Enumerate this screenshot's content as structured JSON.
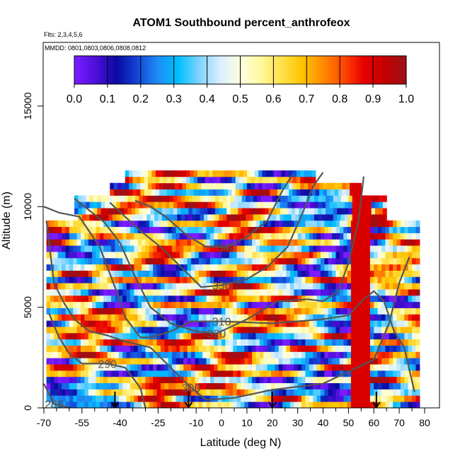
{
  "chart_data": {
    "type": "heatmap",
    "title": "ATOM1 Southbound percent_anthrofeox",
    "flts_label": "Flts: 2,3,4,5,6",
    "mmdd_label": "MMDD: 0801,0803,0806,0808,0812",
    "xlabel": "Latitude (deg N)",
    "ylabel": "Altitude (m)",
    "xlim": [
      -70,
      80
    ],
    "ylim": [
      0,
      17500
    ],
    "x_ticks": [
      -70,
      -55,
      -40,
      -25,
      -10,
      0,
      10,
      20,
      30,
      40,
      50,
      60,
      70,
      80
    ],
    "x_minor_ticks": [
      -65,
      -60,
      -50,
      -45,
      -35,
      -30,
      -20,
      -15,
      -5,
      5,
      15,
      25,
      35,
      45,
      55,
      65,
      75
    ],
    "y_ticks": [
      0,
      5000,
      10000,
      15000
    ],
    "colorbar": {
      "range": [
        0,
        1
      ],
      "ticks": [
        "0.0",
        "0.1",
        "0.2",
        "0.3",
        "0.4",
        "0.5",
        "0.6",
        "0.7",
        "0.8",
        "0.9",
        "1.0"
      ],
      "colors": [
        "#7a1cff",
        "#4b0fd8",
        "#0a0aa0",
        "#1346d8",
        "#1f8cf5",
        "#00bfff",
        "#7fd4ff",
        "#d8eeff",
        "#ffffe0",
        "#fff8a0",
        "#ffe14a",
        "#ffc400",
        "#ff8c00",
        "#ff4a00",
        "#e80000",
        "#c40000",
        "#9e1015"
      ]
    },
    "contours": [
      {
        "label": "280",
        "points": [
          [
            -70,
            1200
          ],
          [
            -66,
            200
          ],
          [
            -60,
            0
          ]
        ]
      },
      {
        "label": "290",
        "points": [
          [
            -68,
            4700
          ],
          [
            -64,
            3500
          ],
          [
            -60,
            2700
          ],
          [
            -55,
            2200
          ],
          [
            -45,
            2200
          ],
          [
            -38,
            2000
          ],
          [
            -32,
            1000
          ],
          [
            -30,
            0
          ]
        ]
      },
      {
        "label": "300",
        "points": [
          [
            -69,
            9300
          ],
          [
            -66,
            6200
          ],
          [
            -62,
            5200
          ],
          [
            -58,
            4400
          ],
          [
            -52,
            3800
          ],
          [
            -45,
            3600
          ],
          [
            -38,
            3300
          ],
          [
            -28,
            3000
          ],
          [
            -20,
            2000
          ],
          [
            -12,
            1000
          ],
          [
            -6,
            400
          ],
          [
            5,
            500
          ],
          [
            20,
            900
          ],
          [
            40,
            1200
          ],
          [
            50,
            1800
          ],
          [
            60,
            2400
          ],
          [
            66,
            4200
          ],
          [
            70,
            6200
          ],
          [
            74,
            7500
          ]
        ]
      },
      {
        "label": "310",
        "points": [
          [
            -70,
            10000
          ],
          [
            -64,
            9700
          ],
          [
            -56,
            9500
          ],
          [
            -48,
            8000
          ],
          [
            -42,
            6000
          ],
          [
            -38,
            4500
          ],
          [
            -32,
            3500
          ],
          [
            -28,
            3500
          ],
          [
            -20,
            3800
          ],
          [
            -12,
            4300
          ],
          [
            0,
            4300
          ],
          [
            20,
            4200
          ],
          [
            40,
            4400
          ],
          [
            50,
            4600
          ],
          [
            56,
            5400
          ],
          [
            60,
            5800
          ],
          [
            64,
            5300
          ],
          [
            68,
            3800
          ],
          [
            72,
            3000
          ],
          [
            76,
            800
          ]
        ]
      },
      {
        "label": "320",
        "points": [
          [
            -58,
            10400
          ],
          [
            -52,
            9800
          ],
          [
            -46,
            9200
          ],
          [
            -40,
            8200
          ],
          [
            -34,
            6500
          ],
          [
            -28,
            5000
          ],
          [
            -20,
            4200
          ],
          [
            -10,
            3800
          ],
          [
            -2,
            3700
          ],
          [
            10,
            4400
          ],
          [
            22,
            5300
          ],
          [
            34,
            5400
          ],
          [
            40,
            5300
          ],
          [
            46,
            5800
          ],
          [
            50,
            7200
          ],
          [
            54,
            9300
          ],
          [
            56,
            11500
          ]
        ]
      },
      {
        "label": "330",
        "points": [
          [
            -44,
            10200
          ],
          [
            -38,
            9500
          ],
          [
            -32,
            8800
          ],
          [
            -24,
            8000
          ],
          [
            -16,
            7000
          ],
          [
            -8,
            6000
          ],
          [
            0,
            6100
          ],
          [
            10,
            6400
          ],
          [
            18,
            7000
          ],
          [
            26,
            8000
          ],
          [
            32,
            9700
          ],
          [
            36,
            11000
          ],
          [
            40,
            11700
          ]
        ]
      },
      {
        "label": "340",
        "points": [
          [
            -34,
            10300
          ],
          [
            -28,
            10000
          ],
          [
            -22,
            9500
          ],
          [
            -14,
            8600
          ],
          [
            -6,
            8000
          ],
          [
            2,
            8000
          ],
          [
            10,
            8500
          ],
          [
            18,
            9300
          ],
          [
            24,
            10800
          ],
          [
            28,
            11600
          ]
        ]
      }
    ],
    "flight_arrows_lat": [
      -42,
      -13,
      20,
      61
    ]
  }
}
